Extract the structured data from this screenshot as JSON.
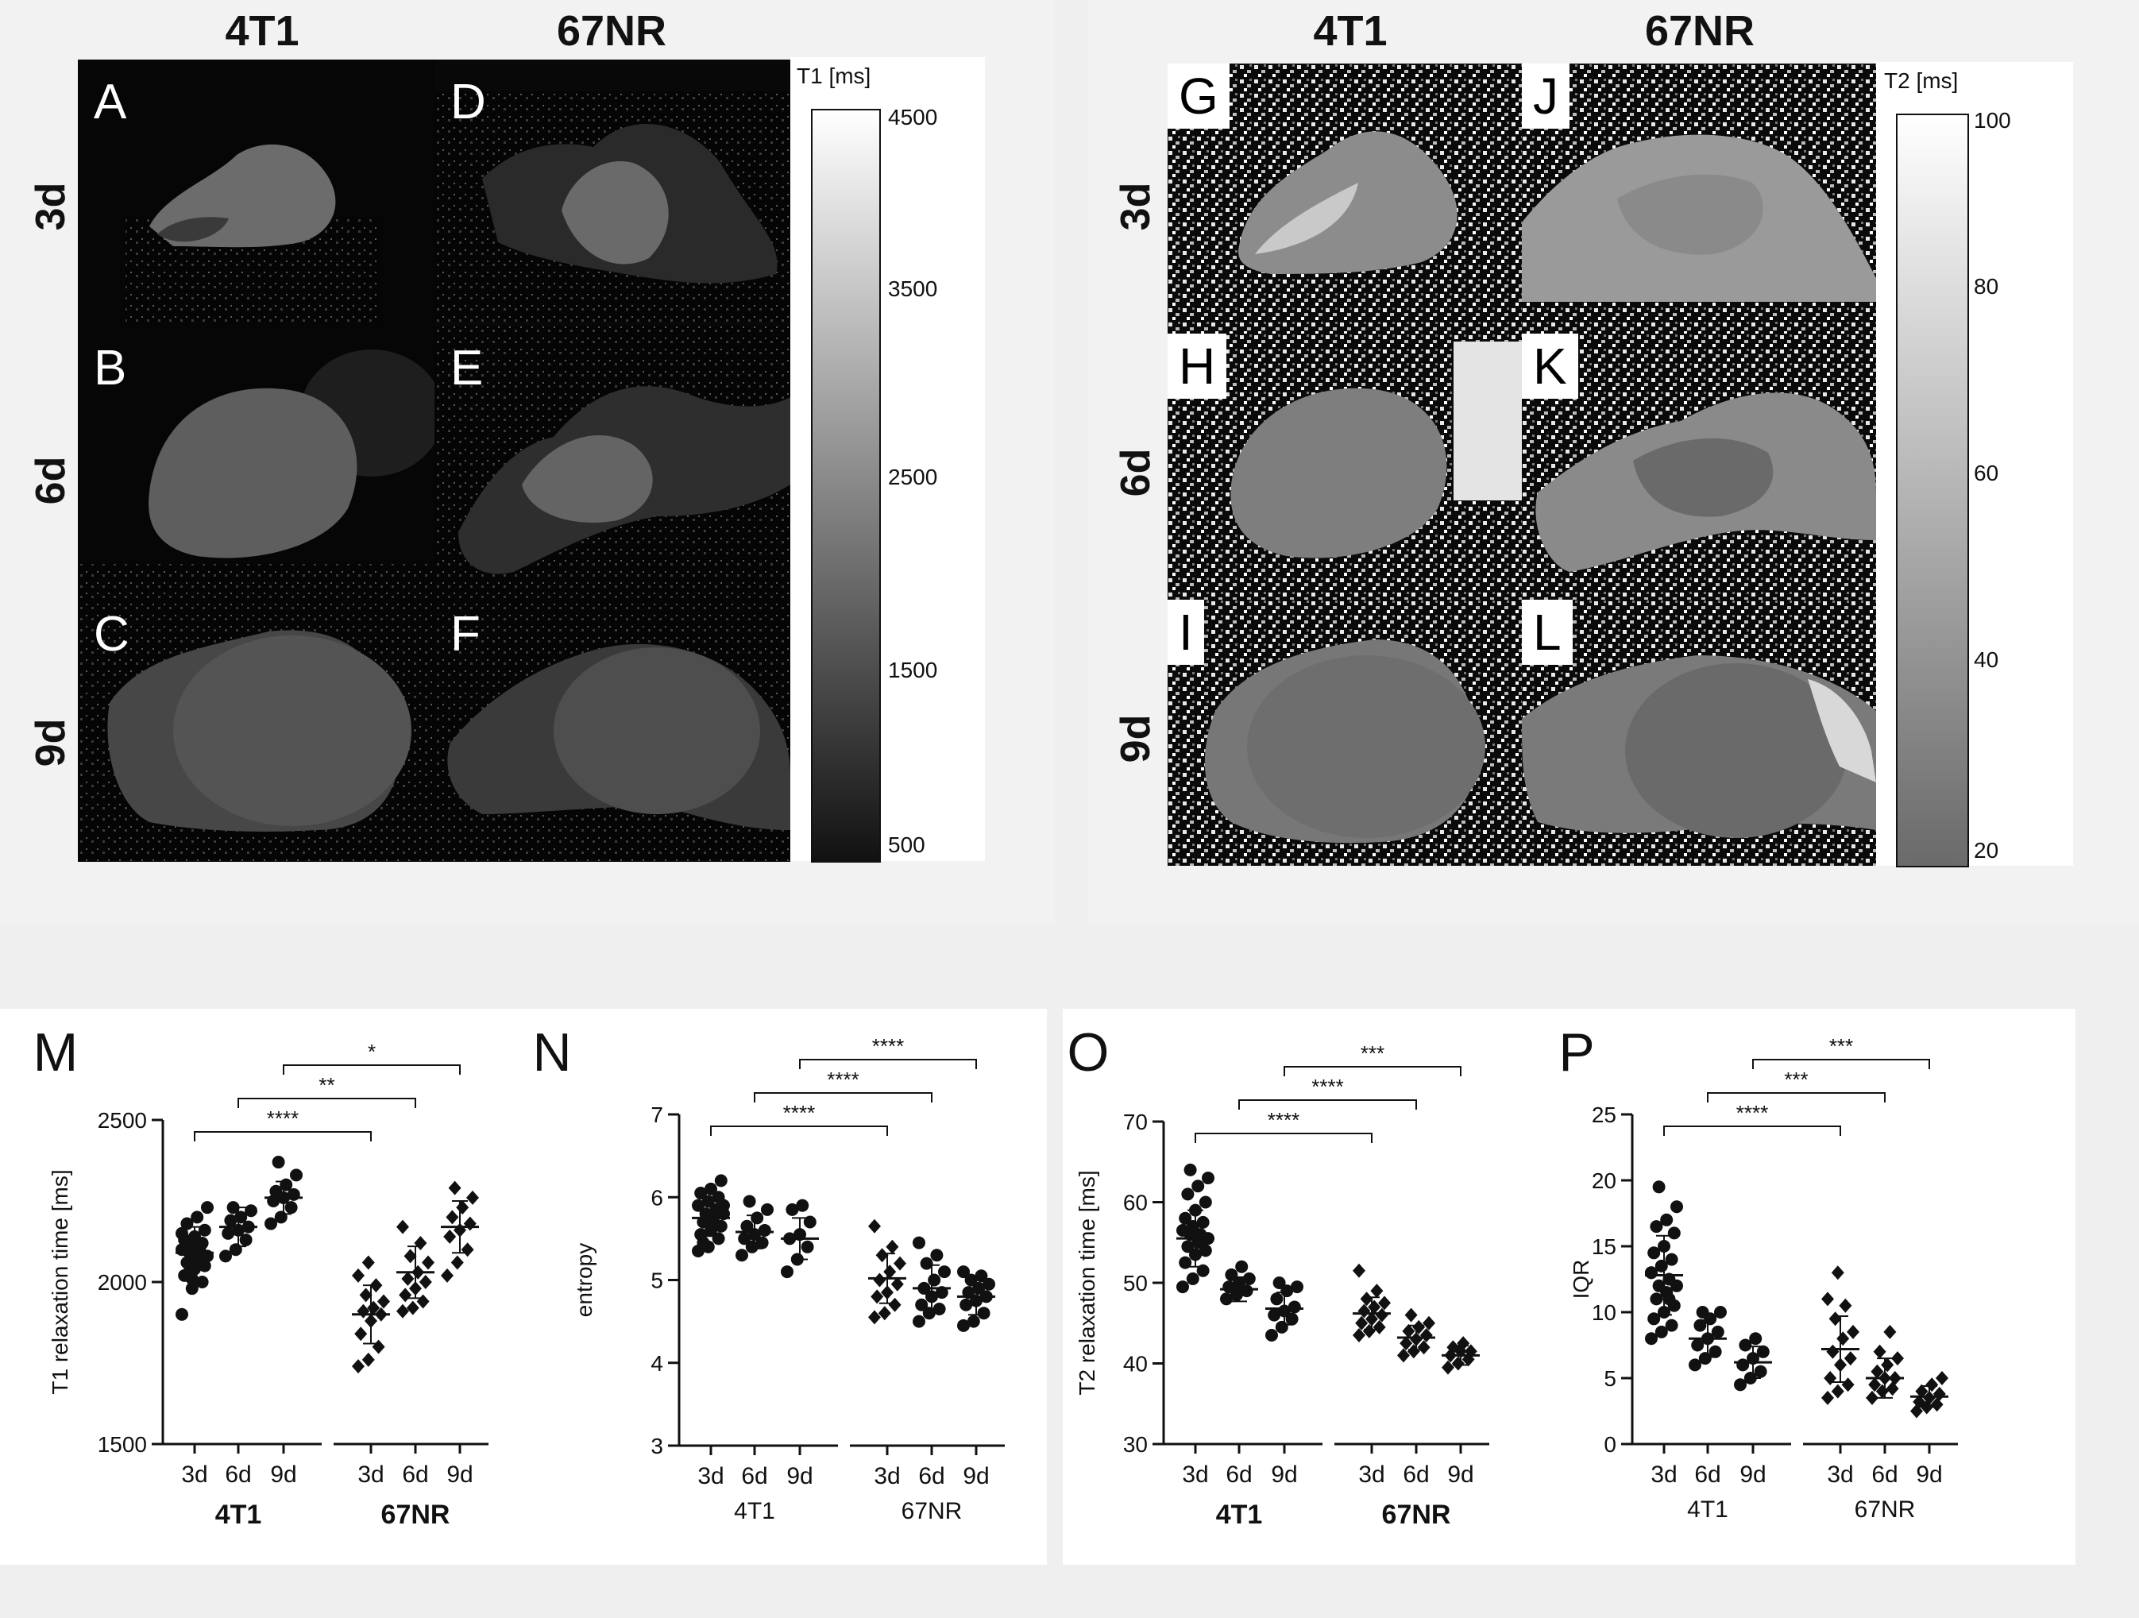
{
  "mri": {
    "t1_columns": [
      "4T1",
      "67NR"
    ],
    "t2_columns": [
      "4T1",
      "67NR"
    ],
    "rows": [
      "3d",
      "6d",
      "9d"
    ],
    "t1_letters": [
      "A",
      "B",
      "C",
      "D",
      "E",
      "F"
    ],
    "t2_letters": [
      "G",
      "H",
      "I",
      "J",
      "K",
      "L"
    ],
    "t1_colorbar": {
      "title": "T1 [ms]",
      "ticks": [
        "4500",
        "3500",
        "2500",
        "1500",
        "500"
      ]
    },
    "t2_colorbar": {
      "title": "T2 [ms]",
      "ticks": [
        "100",
        "80",
        "60",
        "40",
        "20"
      ]
    }
  },
  "chart_data": [
    {
      "type": "scatter",
      "panel": "M",
      "ylabel": "T1 relaxation time [ms]",
      "ylim": [
        1500,
        2500
      ],
      "yticks": [
        1500,
        2000,
        2500
      ],
      "categories": [
        "3d",
        "6d",
        "9d",
        "3d",
        "6d",
        "9d"
      ],
      "groups": [
        "4T1",
        "67NR"
      ],
      "group_bold": true,
      "means": [
        2090,
        2170,
        2260,
        1900,
        2030,
        2170
      ],
      "sd": [
        80,
        60,
        50,
        90,
        80,
        80
      ],
      "points": [
        [
          1900,
          1980,
          2000,
          2020,
          2040,
          2050,
          2060,
          2070,
          2080,
          2090,
          2090,
          2100,
          2110,
          2120,
          2130,
          2140,
          2160,
          2180,
          2200,
          2230,
          2050,
          2100,
          2150,
          2010,
          2070
        ],
        [
          2080,
          2100,
          2130,
          2150,
          2160,
          2170,
          2190,
          2200,
          2220,
          2230
        ],
        [
          2180,
          2200,
          2230,
          2250,
          2260,
          2270,
          2280,
          2300,
          2330,
          2370
        ],
        [
          1740,
          1760,
          1800,
          1840,
          1880,
          1900,
          1910,
          1920,
          1940,
          1960,
          1990,
          2020,
          2060
        ],
        [
          1910,
          1920,
          1940,
          1960,
          1980,
          2000,
          2010,
          2030,
          2060,
          2080,
          2120,
          2170
        ],
        [
          2020,
          2060,
          2100,
          2140,
          2160,
          2180,
          2200,
          2230,
          2260,
          2290
        ]
      ],
      "markers": [
        "circle",
        "circle",
        "circle",
        "diamond",
        "diamond",
        "diamond"
      ],
      "brackets": [
        {
          "from": 0,
          "to": 3,
          "label": "****"
        },
        {
          "from": 1,
          "to": 4,
          "label": "**"
        },
        {
          "from": 2,
          "to": 5,
          "label": "*"
        }
      ]
    },
    {
      "type": "scatter",
      "panel": "N",
      "ylabel": "entropy",
      "ylim": [
        3,
        7
      ],
      "yticks": [
        3,
        4,
        5,
        6,
        7
      ],
      "categories": [
        "3d",
        "6d",
        "9d",
        "3d",
        "6d",
        "9d"
      ],
      "groups": [
        "4T1",
        "67NR"
      ],
      "group_bold": false,
      "means": [
        5.75,
        5.58,
        5.5,
        5.02,
        4.9,
        4.8
      ],
      "sd": [
        0.22,
        0.2,
        0.25,
        0.3,
        0.28,
        0.22
      ],
      "points": [
        [
          5.35,
          5.4,
          5.5,
          5.55,
          5.6,
          5.65,
          5.7,
          5.75,
          5.8,
          5.8,
          5.85,
          5.9,
          5.95,
          6.0,
          6.05,
          6.1,
          6.2,
          5.45,
          5.65,
          5.9
        ],
        [
          5.3,
          5.4,
          5.45,
          5.5,
          5.55,
          5.6,
          5.65,
          5.75,
          5.85,
          5.95
        ],
        [
          5.1,
          5.25,
          5.4,
          5.5,
          5.55,
          5.7,
          5.85,
          5.9
        ],
        [
          4.55,
          4.6,
          4.7,
          4.8,
          4.85,
          4.95,
          5.0,
          5.1,
          5.2,
          5.3,
          5.4,
          5.65
        ],
        [
          4.5,
          4.6,
          4.65,
          4.7,
          4.8,
          4.85,
          4.9,
          5.0,
          5.1,
          5.2,
          5.3,
          5.45
        ],
        [
          4.45,
          4.5,
          4.6,
          4.7,
          4.75,
          4.8,
          4.85,
          4.9,
          4.95,
          5.0,
          5.05,
          5.1
        ]
      ],
      "markers": [
        "circle",
        "circle",
        "circle",
        "diamond",
        "circle",
        "circle"
      ],
      "brackets": [
        {
          "from": 0,
          "to": 3,
          "label": "****"
        },
        {
          "from": 1,
          "to": 4,
          "label": "****"
        },
        {
          "from": 2,
          "to": 5,
          "label": "****"
        }
      ]
    },
    {
      "type": "scatter",
      "panel": "O",
      "ylabel": "T2 relaxation time [ms]",
      "ylim": [
        30,
        70
      ],
      "yticks": [
        30,
        40,
        50,
        60,
        70
      ],
      "categories": [
        "3d",
        "6d",
        "9d",
        "3d",
        "6d",
        "9d"
      ],
      "groups": [
        "4T1",
        "67NR"
      ],
      "group_bold": true,
      "means": [
        55.5,
        49.2,
        46.8,
        46.2,
        43.2,
        41.0
      ],
      "sd": [
        3.5,
        1.5,
        2.0,
        2.0,
        1.5,
        1.2
      ],
      "points": [
        [
          49.5,
          50.5,
          51.5,
          52.5,
          53.5,
          54,
          54.5,
          55,
          55.5,
          56,
          56,
          56.5,
          57,
          57.5,
          58,
          59,
          60,
          61,
          62,
          63,
          64,
          55
        ],
        [
          48,
          48.5,
          49,
          49.5,
          50,
          50.5,
          51,
          52
        ],
        [
          43.5,
          44.5,
          45.5,
          46,
          46.5,
          47,
          48,
          49,
          49.5,
          50
        ],
        [
          43.5,
          44,
          44.5,
          45,
          45.5,
          46,
          46.5,
          47,
          47.5,
          48,
          49,
          51.5
        ],
        [
          41,
          41.5,
          42,
          42.5,
          43,
          43.5,
          44,
          44.5,
          45,
          46
        ],
        [
          39.5,
          40,
          40.5,
          41,
          41.5,
          41.5,
          42,
          42.5
        ]
      ],
      "markers": [
        "circle",
        "circle",
        "circle",
        "diamond",
        "diamond",
        "diamond"
      ],
      "brackets": [
        {
          "from": 0,
          "to": 3,
          "label": "****"
        },
        {
          "from": 1,
          "to": 4,
          "label": "****"
        },
        {
          "from": 2,
          "to": 5,
          "label": "***"
        }
      ]
    },
    {
      "type": "scatter",
      "panel": "P",
      "ylabel": "IQR",
      "ylim": [
        0,
        25
      ],
      "yticks": [
        0,
        5,
        10,
        15,
        20,
        25
      ],
      "categories": [
        "3d",
        "6d",
        "9d",
        "3d",
        "6d",
        "9d"
      ],
      "groups": [
        "4T1",
        "67NR"
      ],
      "group_bold": false,
      "means": [
        12.8,
        8.0,
        6.2,
        7.2,
        5.0,
        3.6
      ],
      "sd": [
        3.0,
        1.4,
        1.2,
        2.5,
        1.5,
        0.8
      ],
      "points": [
        [
          8,
          8.5,
          9,
          9.5,
          10,
          10.5,
          11,
          11.5,
          12,
          12,
          12.5,
          13,
          13.5,
          14,
          14.5,
          15,
          16,
          16.5,
          17,
          18,
          19.5,
          11,
          13
        ],
        [
          6,
          6.5,
          7,
          7.5,
          8,
          8.5,
          9,
          9.5,
          10,
          10
        ],
        [
          4.5,
          5,
          5.5,
          6,
          6.5,
          7,
          7.5,
          8
        ],
        [
          3.5,
          4,
          4.5,
          5,
          6,
          6.5,
          7,
          8,
          8.5,
          9.5,
          10.5,
          11,
          13
        ],
        [
          3.5,
          4,
          4.2,
          4.5,
          5,
          5,
          5.5,
          6,
          6.5,
          7,
          8.5
        ],
        [
          2.5,
          2.8,
          3,
          3.2,
          3.5,
          3.8,
          4,
          4.5,
          5
        ]
      ],
      "markers": [
        "circle",
        "circle",
        "circle",
        "diamond",
        "diamond",
        "diamond"
      ],
      "brackets": [
        {
          "from": 0,
          "to": 3,
          "label": "****"
        },
        {
          "from": 1,
          "to": 4,
          "label": "***"
        },
        {
          "from": 2,
          "to": 5,
          "label": "***"
        }
      ]
    }
  ]
}
